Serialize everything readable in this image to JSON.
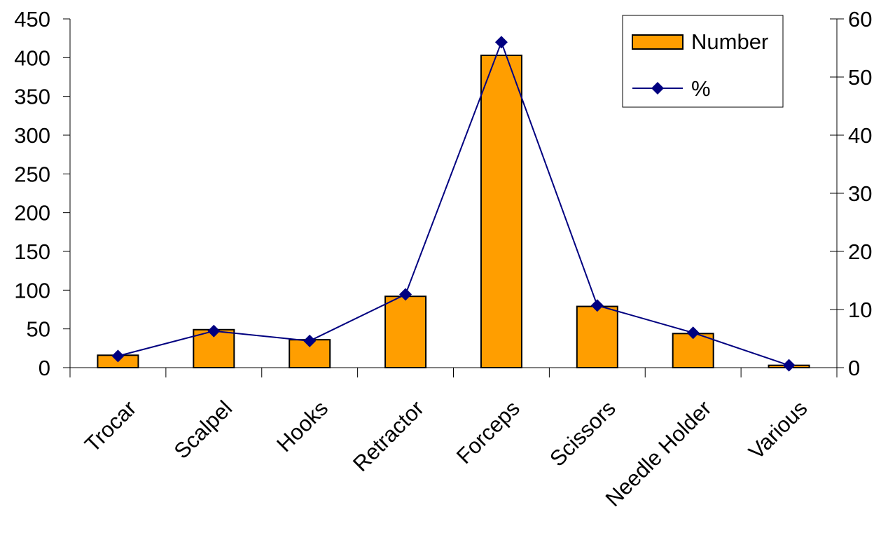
{
  "chart_data": {
    "type": "bar",
    "categories": [
      "Trocar",
      "Scalpel",
      "Hooks",
      "Retractor",
      "Forceps",
      "Scissors",
      "Needle Holder",
      "Various"
    ],
    "series": [
      {
        "name": "Number",
        "type": "bar",
        "axis": "left",
        "color": "#FF9E00",
        "values": [
          16,
          49,
          36,
          92,
          403,
          79,
          44,
          3
        ]
      },
      {
        "name": "%",
        "type": "line",
        "axis": "right",
        "color": "#000080",
        "marker": "diamond",
        "values": [
          2.0,
          6.3,
          4.6,
          12.6,
          56.0,
          10.7,
          6.0,
          0.4
        ]
      }
    ],
    "y_left": {
      "min": 0,
      "max": 450,
      "ticks": [
        "0",
        "50",
        "100",
        "150",
        "200",
        "250",
        "300",
        "350",
        "400",
        "450"
      ]
    },
    "y_right": {
      "min": 0,
      "max": 60,
      "ticks": [
        "0",
        "10",
        "20",
        "30",
        "40",
        "50",
        "60"
      ]
    },
    "title": "",
    "xlabel": "",
    "ylabel": "",
    "grid": false,
    "legend_position": "top-right"
  }
}
